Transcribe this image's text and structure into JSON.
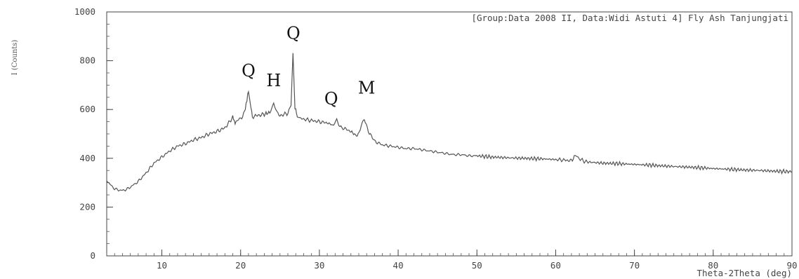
{
  "chart_data": {
    "type": "line",
    "header": "[Group:Data 2008 II, Data:Widi Astuti 4] Fly Ash Tanjungjati",
    "xlabel": "Theta-2Theta (deg)",
    "ylabel": "I (Counts)",
    "xlim": [
      3,
      90
    ],
    "ylim": [
      0,
      1000
    ],
    "x_ticks": [
      10,
      20,
      30,
      40,
      50,
      60,
      70,
      80,
      90
    ],
    "y_ticks": [
      0,
      200,
      400,
      600,
      800,
      1000
    ],
    "grid": false,
    "line_color": "#555555",
    "series": [
      {
        "x": [
          3,
          3.5,
          4,
          4.5,
          5,
          5.5,
          6,
          7,
          8,
          9,
          10,
          11,
          12,
          13,
          14,
          15,
          16,
          17,
          18,
          18.5,
          19,
          19.3,
          19.6,
          20,
          20.5,
          20.8,
          21,
          21.2,
          21.5,
          22,
          23,
          23.8,
          24.2,
          24.6,
          25,
          25.5,
          26,
          26.4,
          26.65,
          26.9,
          27.2,
          28,
          29,
          30,
          31,
          31.8,
          32.2,
          32.6,
          33,
          34,
          34.8,
          35.3,
          35.7,
          36.1,
          36.6,
          37,
          38,
          39,
          40,
          41,
          42,
          43,
          44,
          45,
          46,
          47,
          48,
          49,
          50,
          52,
          54,
          56,
          58,
          60,
          61,
          62,
          62.6,
          63,
          63.5,
          64,
          66,
          68,
          70,
          72,
          74,
          76,
          78,
          80,
          82,
          84,
          86,
          88,
          90
        ],
        "y": [
          310,
          290,
          275,
          270,
          268,
          272,
          282,
          305,
          340,
          380,
          405,
          430,
          450,
          460,
          475,
          485,
          500,
          510,
          525,
          545,
          570,
          545,
          555,
          560,
          590,
          640,
          675,
          630,
          570,
          575,
          580,
          590,
          625,
          585,
          575,
          580,
          585,
          620,
          825,
          610,
          570,
          560,
          555,
          550,
          545,
          535,
          555,
          530,
          525,
          510,
          490,
          530,
          560,
          520,
          490,
          470,
          455,
          450,
          445,
          440,
          440,
          435,
          430,
          425,
          420,
          415,
          415,
          410,
          410,
          405,
          402,
          400,
          398,
          395,
          393,
          390,
          415,
          398,
          390,
          385,
          380,
          378,
          375,
          372,
          368,
          365,
          362,
          358,
          355,
          352,
          350,
          347,
          345
        ]
      }
    ],
    "annotations": [
      {
        "text": "Q",
        "x": 21,
        "y": 735
      },
      {
        "text": "H",
        "x": 24.2,
        "y": 695
      },
      {
        "text": "Q",
        "x": 26.7,
        "y": 890
      },
      {
        "text": "Q",
        "x": 31.5,
        "y": 620
      },
      {
        "text": "M",
        "x": 36,
        "y": 665
      }
    ]
  }
}
